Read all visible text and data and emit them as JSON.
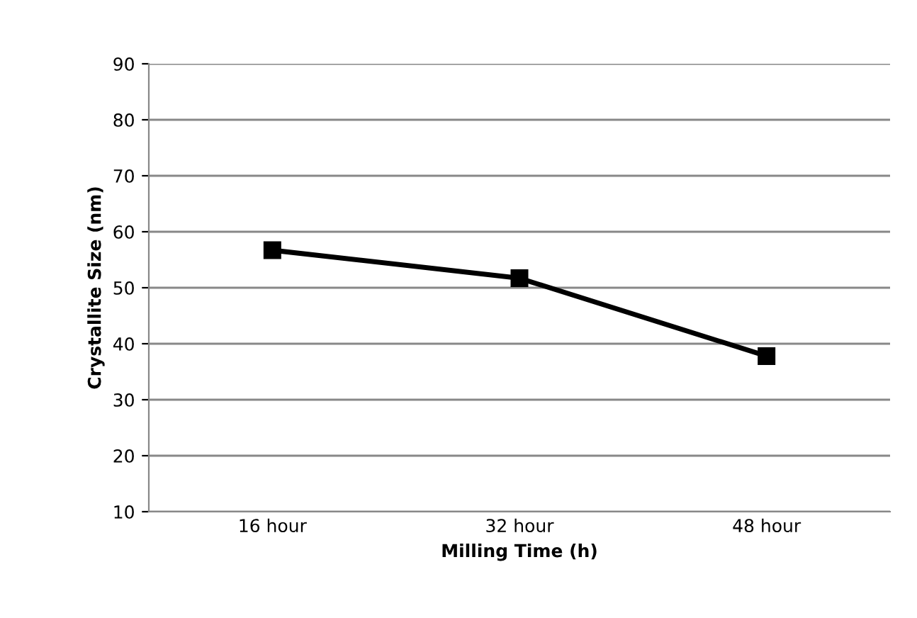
{
  "chart_data": {
    "type": "line",
    "xlabel": "Milling Time (h)",
    "ylabel": "Crystallite Size (nm)",
    "categories": [
      "16 hour",
      "32 hour",
      "48 hour"
    ],
    "series": [
      {
        "color": "#000000",
        "values": [
          56.7,
          51.7,
          37.8
        ]
      }
    ],
    "ylim": [
      10,
      90
    ],
    "yticks": [
      10,
      20,
      30,
      40,
      50,
      60,
      70,
      80,
      90
    ],
    "grid": "y",
    "legend": false,
    "marker": "square",
    "line_style": "solid"
  }
}
